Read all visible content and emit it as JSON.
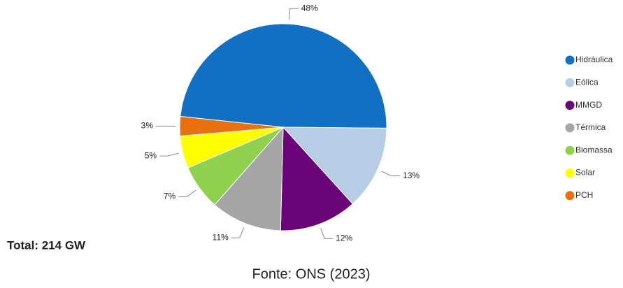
{
  "chart_data": {
    "type": "pie",
    "categories": [
      "Hidráulica",
      "Eólica",
      "MMGD",
      "Térmica",
      "Biomassa",
      "Solar",
      "PCH"
    ],
    "values": [
      48,
      13,
      12,
      11,
      7,
      5,
      3
    ],
    "value_labels": [
      "48%",
      "13%",
      "12%",
      "11%",
      "7%",
      "5%",
      "3%"
    ],
    "colors": [
      "#1170c4",
      "#b7cde6",
      "#6a0377",
      "#a5a5a5",
      "#8fd14f",
      "#ffff00",
      "#e8700f"
    ],
    "legend": "right",
    "annotations": [
      "Total: 214 GW",
      "Fonte: ONS (2023)"
    ]
  }
}
